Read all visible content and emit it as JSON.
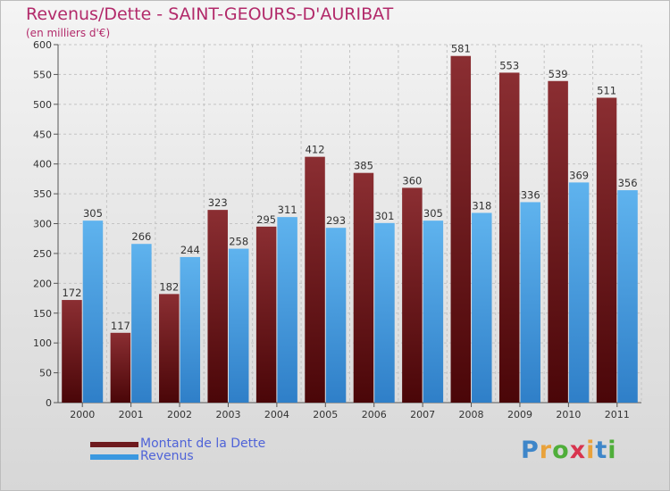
{
  "header": {
    "title": "Revenus/Dette - SAINT-GEOURS-D'AURIBAT",
    "subtitle": "(en milliers d'€)"
  },
  "chart_data": {
    "type": "bar",
    "title": "Revenus/Dette - SAINT-GEOURS-D'AURIBAT",
    "subtitle": "(en milliers d'€)",
    "categories": [
      "2000",
      "2001",
      "2002",
      "2003",
      "2004",
      "2005",
      "2006",
      "2007",
      "2008",
      "2009",
      "2010",
      "2011"
    ],
    "series": [
      {
        "name": "Montant de la Dette",
        "color": "#6e1a1e",
        "values": [
          172,
          117,
          182,
          323,
          295,
          412,
          385,
          360,
          581,
          553,
          539,
          511
        ]
      },
      {
        "name": "Revenus",
        "color": "#3a98e0",
        "values": [
          305,
          266,
          244,
          258,
          311,
          293,
          301,
          305,
          318,
          336,
          369,
          356
        ]
      }
    ],
    "ylim": [
      0,
      600
    ],
    "yticks": [
      0,
      50,
      100,
      150,
      200,
      250,
      300,
      350,
      400,
      450,
      500,
      550,
      600
    ],
    "grid": true,
    "data_labels": true,
    "legend_position": "bottom-left"
  },
  "legend": [
    {
      "label": "Montant de la Dette",
      "color": "#6e1a1e"
    },
    {
      "label": "Revenus",
      "color": "#3a98e0"
    }
  ],
  "logo": {
    "letters": [
      "P",
      "r",
      "o",
      "x",
      "i",
      "t",
      "i"
    ],
    "colors": [
      "#3e86c9",
      "#e9a23b",
      "#4fae3a",
      "#d8344e",
      "#e9a23b",
      "#3e86c9",
      "#4fae3a"
    ]
  }
}
